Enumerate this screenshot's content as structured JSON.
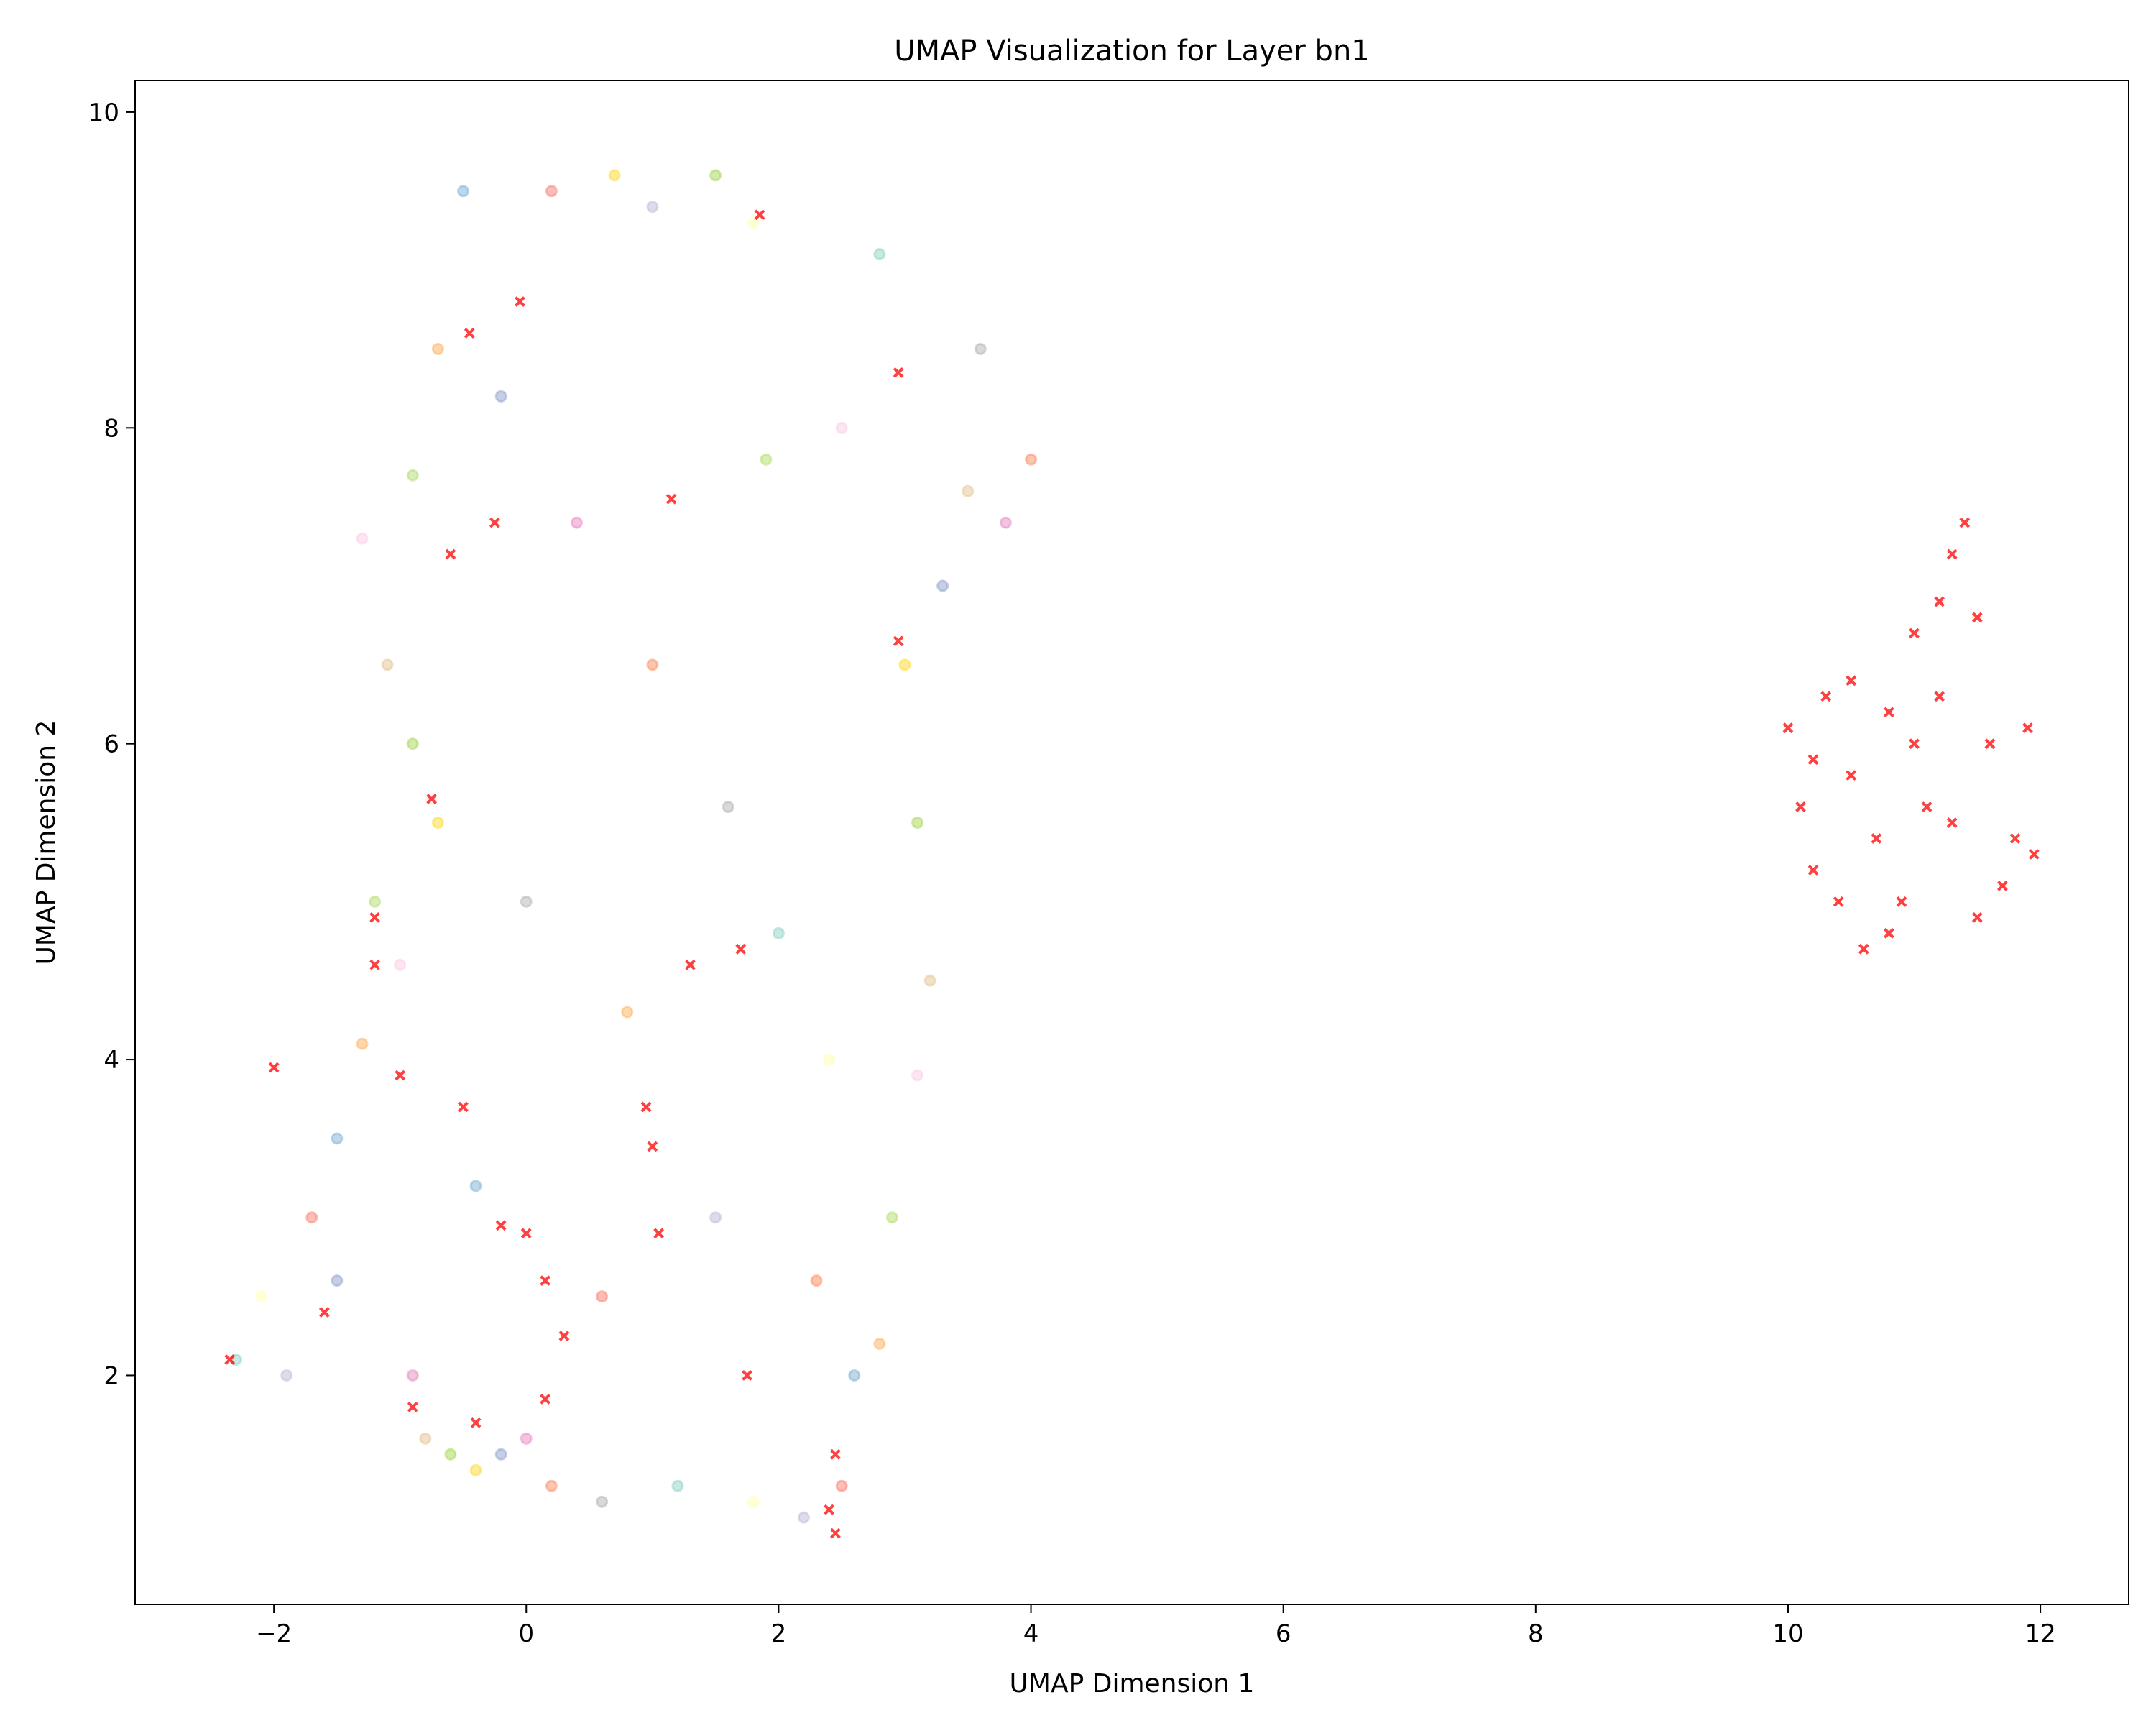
{
  "chart_data": {
    "type": "scatter",
    "title": "UMAP Visualization for Layer bn1",
    "xlabel": "UMAP Dimension 1",
    "ylabel": "UMAP Dimension 2",
    "xlim": [
      -3.1,
      12.7
    ],
    "ylim": [
      0.55,
      10.2
    ],
    "xticks": [
      -2,
      0,
      2,
      4,
      6,
      8,
      10,
      12
    ],
    "xtick_labels": [
      "−2",
      "0",
      "2",
      "4",
      "6",
      "8",
      "10",
      "12"
    ],
    "yticks": [
      2,
      4,
      6,
      8,
      10
    ],
    "ytick_labels": [
      "2",
      "4",
      "6",
      "8",
      "10"
    ],
    "grid": false,
    "legend": "none",
    "point_alpha": 0.5,
    "palette": [
      "#8dd3c7",
      "#ffffb3",
      "#bebada",
      "#fb8072",
      "#80b1d3",
      "#fdb462",
      "#b3de69",
      "#fccde5",
      "#e5c494",
      "#a6d854",
      "#ffd92f",
      "#8da0cb",
      "#e78ac3",
      "#fc8d62",
      "#b3b3b3"
    ],
    "outlier_color": "#ff0000",
    "series": [
      {
        "marker": "circle",
        "color_scheme": "mixed pastel",
        "points": [
          [
            -2.3,
            2.1
          ],
          [
            -2.1,
            2.5
          ],
          [
            -1.9,
            2.0
          ],
          [
            -1.7,
            3.0
          ],
          [
            -1.5,
            3.5
          ],
          [
            -1.3,
            4.1
          ],
          [
            -1.2,
            5.0
          ],
          [
            -1.0,
            4.6
          ],
          [
            -0.8,
            1.6
          ],
          [
            -0.6,
            1.5
          ],
          [
            -0.4,
            1.4
          ],
          [
            -0.2,
            1.5
          ],
          [
            0.0,
            1.6
          ],
          [
            0.2,
            1.3
          ],
          [
            0.6,
            1.2
          ],
          [
            1.2,
            1.3
          ],
          [
            1.8,
            1.2
          ],
          [
            2.2,
            1.1
          ],
          [
            2.5,
            1.3
          ],
          [
            2.6,
            2.0
          ],
          [
            2.8,
            2.2
          ],
          [
            2.9,
            3.0
          ],
          [
            3.1,
            3.9
          ],
          [
            3.2,
            4.5
          ],
          [
            3.1,
            5.5
          ],
          [
            3.0,
            6.5
          ],
          [
            3.3,
            7.0
          ],
          [
            3.8,
            7.4
          ],
          [
            4.0,
            7.8
          ],
          [
            3.6,
            8.5
          ],
          [
            2.8,
            9.1
          ],
          [
            1.8,
            9.3
          ],
          [
            1.0,
            9.4
          ],
          [
            0.2,
            9.5
          ],
          [
            -0.5,
            9.5
          ],
          [
            -0.7,
            8.5
          ],
          [
            -0.9,
            7.7
          ],
          [
            -1.3,
            7.3
          ],
          [
            -1.1,
            6.5
          ],
          [
            -0.9,
            6.0
          ],
          [
            -0.7,
            5.5
          ],
          [
            -0.2,
            8.2
          ],
          [
            0.4,
            7.4
          ],
          [
            1.0,
            6.5
          ],
          [
            1.6,
            5.6
          ],
          [
            2.0,
            4.8
          ],
          [
            2.4,
            4.0
          ],
          [
            1.5,
            3.0
          ],
          [
            0.6,
            2.5
          ],
          [
            -0.4,
            3.2
          ],
          [
            0.8,
            4.3
          ],
          [
            1.9,
            7.8
          ],
          [
            2.5,
            8.0
          ],
          [
            3.5,
            7.6
          ],
          [
            1.5,
            9.6
          ],
          [
            0.7,
            9.6
          ],
          [
            -1.5,
            2.6
          ],
          [
            -0.9,
            2.0
          ],
          [
            2.3,
            2.6
          ],
          [
            0.0,
            5.0
          ]
        ]
      },
      {
        "marker": "x",
        "color_scheme": "outlier",
        "points": [
          [
            10.0,
            6.1
          ],
          [
            10.1,
            5.6
          ],
          [
            10.2,
            5.2
          ],
          [
            10.3,
            6.3
          ],
          [
            10.4,
            5.0
          ],
          [
            10.5,
            6.4
          ],
          [
            10.6,
            4.7
          ],
          [
            10.7,
            5.4
          ],
          [
            10.8,
            6.2
          ],
          [
            10.9,
            5.0
          ],
          [
            11.0,
            6.7
          ],
          [
            11.1,
            5.6
          ],
          [
            11.2,
            6.9
          ],
          [
            11.3,
            7.2
          ],
          [
            11.4,
            7.4
          ],
          [
            11.5,
            6.8
          ],
          [
            11.6,
            6.0
          ],
          [
            11.7,
            5.1
          ],
          [
            11.8,
            5.4
          ],
          [
            11.9,
            6.1
          ],
          [
            11.95,
            5.3
          ],
          [
            10.5,
            5.8
          ],
          [
            11.0,
            6.0
          ],
          [
            11.3,
            5.5
          ],
          [
            10.8,
            4.8
          ],
          [
            11.5,
            4.9
          ],
          [
            10.2,
            5.9
          ],
          [
            11.2,
            6.3
          ],
          [
            -2.35,
            2.1
          ],
          [
            -2.0,
            3.95
          ],
          [
            -1.6,
            2.4
          ],
          [
            -1.2,
            4.9
          ],
          [
            -1.2,
            4.6
          ],
          [
            -0.6,
            7.2
          ],
          [
            -0.25,
            7.4
          ],
          [
            -0.45,
            8.6
          ],
          [
            -0.05,
            8.8
          ],
          [
            -0.75,
            5.65
          ],
          [
            -1.0,
            3.9
          ],
          [
            -0.5,
            3.7
          ],
          [
            -0.2,
            2.95
          ],
          [
            0.0,
            2.9
          ],
          [
            0.15,
            2.6
          ],
          [
            0.3,
            2.25
          ],
          [
            0.15,
            1.85
          ],
          [
            -0.4,
            1.7
          ],
          [
            -0.9,
            1.8
          ],
          [
            0.95,
            3.7
          ],
          [
            1.0,
            3.45
          ],
          [
            1.05,
            2.9
          ],
          [
            1.3,
            4.6
          ],
          [
            1.7,
            4.7
          ],
          [
            1.75,
            2.0
          ],
          [
            2.4,
            1.15
          ],
          [
            2.45,
            1.0
          ],
          [
            2.45,
            1.5
          ],
          [
            1.85,
            9.35
          ],
          [
            2.95,
            8.35
          ],
          [
            1.15,
            7.55
          ],
          [
            2.95,
            6.65
          ]
        ]
      }
    ]
  }
}
